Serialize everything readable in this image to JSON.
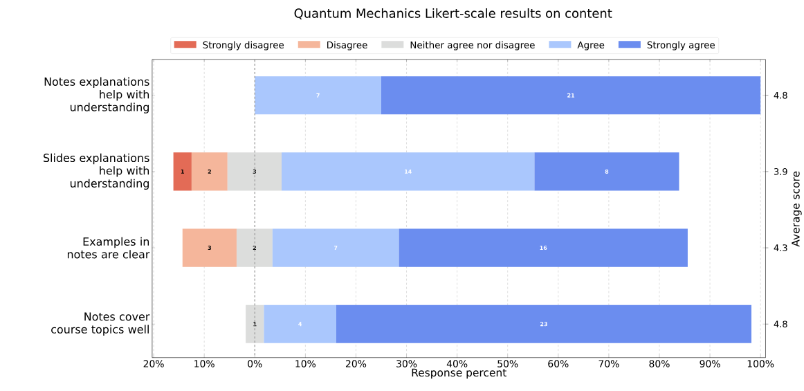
{
  "chart_data": {
    "type": "bar",
    "orientation": "horizontal",
    "title": "Quantum Mechanics Likert-scale results on content",
    "xlabel": "Response percent",
    "y2label": "Average score",
    "categories": [
      "Notes explanations help with understanding",
      "Slides explanations help with understanding",
      "Examples in notes are clear",
      "Notes cover course topics well"
    ],
    "y2_categories": [
      "4.8",
      "3.9",
      "4.3",
      "4.8"
    ],
    "series": [
      {
        "name": "Strongly disagree",
        "color": "#e36b56",
        "base": [
          null,
          -16.1,
          null,
          null
        ],
        "values": [
          null,
          3.6,
          null,
          null
        ]
      },
      {
        "name": "Disagree",
        "color": "#f5b69b",
        "base": [
          null,
          -12.5,
          -14.3,
          null
        ],
        "values": [
          null,
          7.1,
          10.7,
          null
        ]
      },
      {
        "name": "Neither agree nor disagree",
        "color": "#dcdddc",
        "base": [
          null,
          -5.4,
          -3.6,
          -1.8
        ],
        "values": [
          null,
          10.7,
          7.1,
          3.6
        ]
      },
      {
        "name": "Agree",
        "color": "#aac7fd",
        "base": [
          0,
          5.3,
          3.5,
          1.8
        ],
        "values": [
          25,
          50,
          25,
          14.3
        ]
      },
      {
        "name": "Strongly agree",
        "color": "#6b8def",
        "base": [
          25,
          55.3,
          28.5,
          16.1
        ],
        "values": [
          75,
          28.6,
          57.1,
          82.1
        ]
      }
    ],
    "annotations": [
      "7",
      "21",
      "1",
      "2",
      "3",
      "14",
      "8",
      "3",
      "2",
      "7",
      "16",
      "1",
      "4",
      "23"
    ],
    "xlim": [
      -20.3,
      101
    ],
    "xticks": [
      {
        "value": -20,
        "label": "20%"
      },
      {
        "value": -10,
        "label": "10%"
      },
      {
        "value": 0,
        "label": "0%"
      },
      {
        "value": 10,
        "label": "10%"
      },
      {
        "value": 20,
        "label": "20%"
      },
      {
        "value": 30,
        "label": "30%"
      },
      {
        "value": 40,
        "label": "40%"
      },
      {
        "value": 50,
        "label": "50%"
      },
      {
        "value": 60,
        "label": "60%"
      },
      {
        "value": 70,
        "label": "70%"
      },
      {
        "value": 80,
        "label": "80%"
      },
      {
        "value": 90,
        "label": "90%"
      },
      {
        "value": 100,
        "label": "100%"
      }
    ],
    "ref_lines": [
      {
        "axis": "x",
        "value": 0,
        "color": "#999999",
        "line_style": "dashed"
      }
    ],
    "grid": "x",
    "legend": "top"
  }
}
